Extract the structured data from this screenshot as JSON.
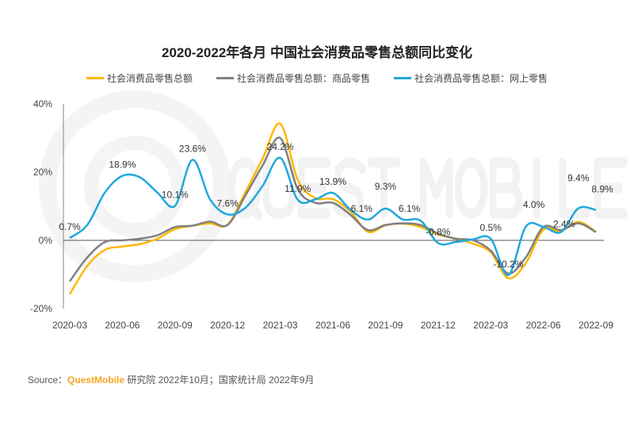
{
  "chart_data": {
    "type": "line",
    "title": "2020-2022年各月 中国社会消费品零售总额同比变化",
    "months": [
      "2020-03",
      "2020-04",
      "2020-05",
      "2020-06",
      "2020-07",
      "2020-08",
      "2020-09",
      "2020-10",
      "2020-11",
      "2020-12",
      "2021-01",
      "2021-02",
      "2021-03",
      "2021-04",
      "2021-05",
      "2021-06",
      "2021-07",
      "2021-08",
      "2021-09",
      "2021-10",
      "2021-11",
      "2021-12",
      "2022-01",
      "2022-02",
      "2022-03",
      "2022-04",
      "2022-05",
      "2022-06",
      "2022-07",
      "2022-08",
      "2022-09"
    ],
    "x_tick_labels": [
      "2020-03",
      "2020-06",
      "2020-09",
      "2020-12",
      "2021-03",
      "2021-06",
      "2021-09",
      "2021-12",
      "2022-03",
      "2022-06",
      "2022-09"
    ],
    "y_tick_labels": [
      "40%",
      "20%",
      "0%",
      "-20%"
    ],
    "ylim": [
      -20,
      40
    ],
    "unit": "%",
    "series": [
      {
        "name": "社会消费品零售总额",
        "color": "#FFB800",
        "values": [
          -15.8,
          -7.5,
          -2.8,
          -1.8,
          -1.1,
          0.5,
          3.3,
          4.3,
          5.0,
          4.6,
          14,
          24,
          34.2,
          17.7,
          12.4,
          12.1,
          8.5,
          2.5,
          4.4,
          4.9,
          3.9,
          1.7,
          0.5,
          -1,
          -3.5,
          -11.1,
          -6.7,
          3.1,
          2.7,
          5.4,
          2.5
        ]
      },
      {
        "name": "社会消费品零售总额：商品零售",
        "color": "#808080",
        "values": [
          -12,
          -5,
          -0.5,
          0,
          0.5,
          1.5,
          3.9,
          4.3,
          5.5,
          4.5,
          13,
          22,
          30,
          15,
          11,
          11,
          7.5,
          3,
          4.5,
          5,
          4.5,
          2,
          0.5,
          0,
          -3,
          -9.7,
          -5,
          3.9,
          3,
          5,
          2.4
        ]
      },
      {
        "name": "社会消费品零售总额：网上零售",
        "color": "#1FA8DE",
        "values": [
          0.7,
          4.5,
          14,
          18.9,
          18.5,
          14,
          10.1,
          23.6,
          12,
          7.6,
          9.5,
          16,
          24.2,
          11.9,
          12.0,
          13.9,
          9,
          6.1,
          9.3,
          6.1,
          5.8,
          -0.8,
          -0.5,
          0.3,
          0.5,
          -10.2,
          4.0,
          4.0,
          2.4,
          9.4,
          8.9
        ]
      }
    ],
    "data_labels": [
      {
        "index": 0,
        "text": "0.7%"
      },
      {
        "index": 3,
        "text": "18.9%"
      },
      {
        "index": 6,
        "text": "10.1%"
      },
      {
        "index": 7,
        "text": "23.6%"
      },
      {
        "index": 9,
        "text": "7.6%"
      },
      {
        "index": 12,
        "text": "24.2%"
      },
      {
        "index": 13,
        "text": "11.9%"
      },
      {
        "index": 15,
        "text": "13.9%"
      },
      {
        "index": 17,
        "text": "6.1%"
      },
      {
        "index": 18,
        "text": "9.3%"
      },
      {
        "index": 19,
        "text": "6.1%"
      },
      {
        "index": 21,
        "text": "-0.8%"
      },
      {
        "index": 24,
        "text": "0.5%"
      },
      {
        "index": 25,
        "text": "-10.2%"
      },
      {
        "index": 27,
        "text": "4.0%"
      },
      {
        "index": 28,
        "text": "2.4%"
      },
      {
        "index": 29,
        "text": "9.4%"
      },
      {
        "index": 30,
        "text": "8.9%"
      }
    ],
    "watermark": "QUEST MOBILE"
  },
  "source": {
    "prefix": "Source：",
    "brand": "QuestMobile",
    "rest": " 研究院 2022年10月；国家统计局 2022年9月"
  }
}
